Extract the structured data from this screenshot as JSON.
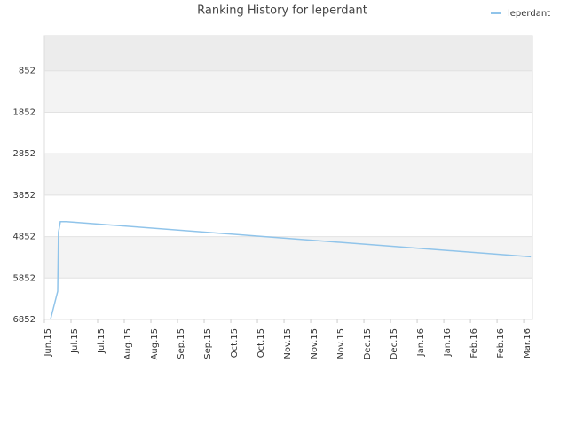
{
  "chart_data": {
    "type": "line",
    "title": "Ranking History for leperdant",
    "x": [
      0.23,
      0.5,
      0.53,
      0.6,
      0.83,
      18.27
    ],
    "series": [
      {
        "name": "leperdant",
        "color": "#90c4ea",
        "values": [
          6852,
          6171,
          4746,
          4490,
          4490,
          5341
        ]
      }
    ],
    "xlim": [
      0,
      18.33
    ],
    "xticks": [
      {
        "value": 0,
        "label": "Jun.15"
      },
      {
        "value": 1,
        "label": "Jul.15"
      },
      {
        "value": 2,
        "label": "Jul.15"
      },
      {
        "value": 3,
        "label": "Aug.15"
      },
      {
        "value": 4,
        "label": "Aug.15"
      },
      {
        "value": 5,
        "label": "Sep.15"
      },
      {
        "value": 6,
        "label": "Sep.15"
      },
      {
        "value": 7,
        "label": "Oct.15"
      },
      {
        "value": 8,
        "label": "Oct.15"
      },
      {
        "value": 9,
        "label": "Nov.15"
      },
      {
        "value": 10,
        "label": "Nov.15"
      },
      {
        "value": 11,
        "label": "Nov.15"
      },
      {
        "value": 12,
        "label": "Dec.15"
      },
      {
        "value": 13,
        "label": "Dec.15"
      },
      {
        "value": 14,
        "label": "Jan.16"
      },
      {
        "value": 15,
        "label": "Jan.16"
      },
      {
        "value": 16,
        "label": "Feb.16"
      },
      {
        "value": 17,
        "label": "Feb.16"
      },
      {
        "value": 18,
        "label": "Mar.16"
      }
    ],
    "ylim": [
      6852,
      1
    ],
    "yticks": [
      852,
      1852,
      2852,
      3852,
      4852,
      5852,
      6852
    ],
    "grid": true,
    "legend": "top-right"
  }
}
